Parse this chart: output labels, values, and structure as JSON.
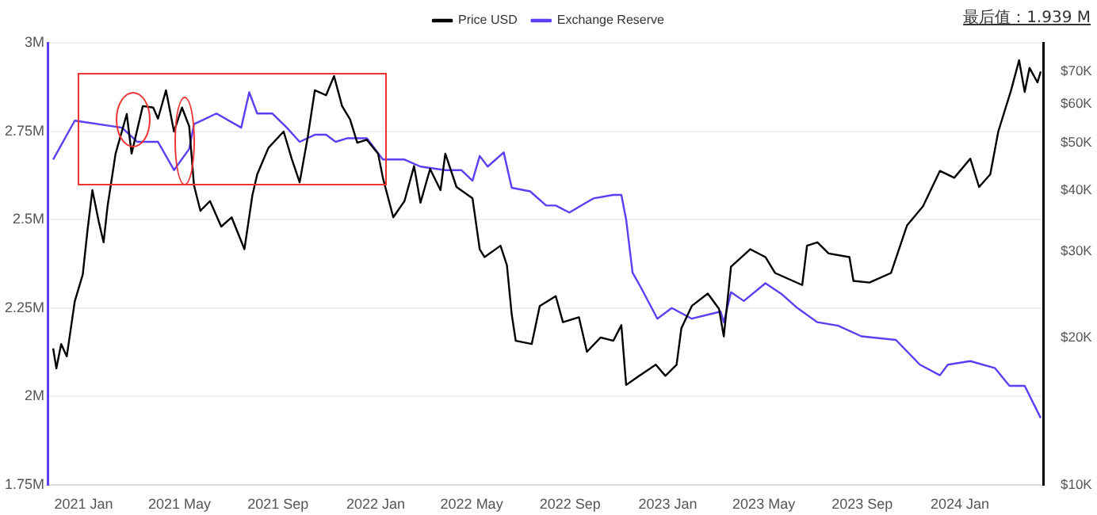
{
  "chart_data": {
    "type": "line",
    "annotations": [
      "最后值：1.939 M"
    ],
    "legend": "top",
    "grid": "y",
    "marker": "none",
    "line_style": "solid",
    "log": "y2",
    "ylim": [
      1.75,
      3
    ],
    "yticks": [
      {
        "value": 1.75,
        "label": "1.75M"
      },
      {
        "value": 2,
        "label": "2M"
      },
      {
        "value": 2.25,
        "label": "2.25M"
      },
      {
        "value": 2.5,
        "label": "2.5M"
      },
      {
        "value": 2.75,
        "label": "2.75M"
      },
      {
        "value": 3,
        "label": "3M"
      }
    ],
    "y2lim": [
      10000,
      80000
    ],
    "y2ticks": [
      {
        "value": 10000,
        "label": "$10K"
      },
      {
        "value": 20000,
        "label": "$20K"
      },
      {
        "value": 30000,
        "label": "$30K"
      },
      {
        "value": 40000,
        "label": "$40K"
      },
      {
        "value": 50000,
        "label": "$50K"
      },
      {
        "value": 60000,
        "label": "$60K"
      },
      {
        "value": 70000,
        "label": "$70K"
      }
    ],
    "xlim": [
      "2020-11-17",
      "2024-04-14"
    ],
    "xticks": [
      {
        "value": "2021-01-01",
        "label": "2021 Jan"
      },
      {
        "value": "2021-05-01",
        "label": "2021 May"
      },
      {
        "value": "2021-09-01",
        "label": "2021 Sep"
      },
      {
        "value": "2022-01-01",
        "label": "2022 Jan"
      },
      {
        "value": "2022-05-01",
        "label": "2022 May"
      },
      {
        "value": "2022-09-01",
        "label": "2022 Sep"
      },
      {
        "value": "2023-01-01",
        "label": "2023 Jan"
      },
      {
        "value": "2023-05-01",
        "label": "2023 May"
      },
      {
        "value": "2023-09-01",
        "label": "2023 Sep"
      },
      {
        "value": "2024-01-01",
        "label": "2024 Jan"
      }
    ],
    "series": [
      {
        "name": "Price USD",
        "color": "#000000",
        "axis": "y2",
        "x": [
          "2020-11-24",
          "2020-11-28",
          "2020-12-04",
          "2020-12-11",
          "2020-12-21",
          "2020-12-31",
          "2021-01-06",
          "2021-01-12",
          "2021-01-20",
          "2021-01-26",
          "2021-01-31",
          "2021-02-10",
          "2021-02-24",
          "2021-03-02",
          "2021-03-16",
          "2021-03-29",
          "2021-04-04",
          "2021-04-14",
          "2021-04-24",
          "2021-05-04",
          "2021-05-13",
          "2021-05-19",
          "2021-05-27",
          "2021-06-08",
          "2021-06-22",
          "2021-07-05",
          "2021-07-21",
          "2021-07-31",
          "2021-08-06",
          "2021-08-20",
          "2021-09-08",
          "2021-09-18",
          "2021-09-28",
          "2021-10-08",
          "2021-10-17",
          "2021-10-31",
          "2021-11-10",
          "2021-11-20",
          "2021-11-30",
          "2021-12-09",
          "2021-12-21",
          "2022-01-04",
          "2022-01-10",
          "2022-01-23",
          "2022-02-06",
          "2022-02-18",
          "2022-02-26",
          "2022-03-10",
          "2022-03-23",
          "2022-03-29",
          "2022-04-12",
          "2022-05-02",
          "2022-05-11",
          "2022-05-17",
          "2022-06-06",
          "2022-06-14",
          "2022-06-20",
          "2022-06-25",
          "2022-07-15",
          "2022-07-25",
          "2022-08-14",
          "2022-08-23",
          "2022-09-12",
          "2022-09-22",
          "2022-10-09",
          "2022-10-25",
          "2022-11-04",
          "2022-11-10",
          "2022-11-24",
          "2022-12-17",
          "2022-12-29",
          "2023-01-12",
          "2023-01-18",
          "2023-01-31",
          "2023-02-20",
          "2023-03-06",
          "2023-03-12",
          "2023-03-21",
          "2023-04-14",
          "2023-05-03",
          "2023-05-15",
          "2023-06-18",
          "2023-06-24",
          "2023-07-07",
          "2023-07-21",
          "2023-08-16",
          "2023-08-21",
          "2023-09-10",
          "2023-10-07",
          "2023-10-27",
          "2023-11-16",
          "2023-12-07",
          "2023-12-25",
          "2024-01-14",
          "2024-01-25",
          "2024-02-08",
          "2024-02-18",
          "2024-03-05",
          "2024-03-15",
          "2024-03-22",
          "2024-03-28",
          "2024-04-07",
          "2024-04-11"
        ],
        "values": [
          19000,
          17300,
          19400,
          18300,
          23700,
          26900,
          33200,
          40000,
          34500,
          31300,
          37100,
          47500,
          57200,
          47500,
          59400,
          59000,
          56000,
          64000,
          52700,
          59000,
          54000,
          40900,
          36300,
          38000,
          33700,
          35200,
          30300,
          39100,
          43100,
          48800,
          52700,
          46400,
          41500,
          51200,
          64000,
          62500,
          68400,
          59400,
          55800,
          50000,
          50700,
          47500,
          42400,
          35200,
          38000,
          44800,
          37700,
          44200,
          40000,
          47500,
          40600,
          38500,
          30300,
          29200,
          30800,
          28100,
          22300,
          19700,
          19400,
          23200,
          24300,
          21500,
          22000,
          18700,
          20000,
          19700,
          21200,
          16000,
          16600,
          17600,
          16700,
          17600,
          20900,
          23200,
          24600,
          22900,
          20100,
          27900,
          30300,
          29200,
          27100,
          25600,
          30800,
          31300,
          29700,
          29200,
          26100,
          25900,
          27100,
          33900,
          37100,
          43800,
          42400,
          46400,
          40600,
          43100,
          52700,
          64000,
          73700,
          63500,
          71100,
          66400,
          69900
        ]
      },
      {
        "name": "Exchange Reserve",
        "color": "#5b3ff5",
        "axis": "y",
        "x": [
          "2020-11-24",
          "2020-12-21",
          "2021-02-18",
          "2021-03-09",
          "2021-04-04",
          "2021-04-24",
          "2021-05-13",
          "2021-05-19",
          "2021-06-16",
          "2021-07-17",
          "2021-07-27",
          "2021-08-06",
          "2021-08-25",
          "2021-09-12",
          "2021-09-28",
          "2021-10-17",
          "2021-10-31",
          "2021-11-12",
          "2021-11-26",
          "2021-12-21",
          "2022-01-10",
          "2022-02-06",
          "2022-02-26",
          "2022-03-29",
          "2022-04-18",
          "2022-05-02",
          "2022-05-11",
          "2022-05-21",
          "2022-06-10",
          "2022-06-20",
          "2022-07-13",
          "2022-08-02",
          "2022-08-14",
          "2022-08-31",
          "2022-09-30",
          "2022-10-25",
          "2022-11-04",
          "2022-11-10",
          "2022-11-18",
          "2022-11-28",
          "2022-12-19",
          "2023-01-06",
          "2023-01-31",
          "2023-03-08",
          "2023-03-12",
          "2023-03-21",
          "2023-04-06",
          "2023-05-03",
          "2023-05-23",
          "2023-06-12",
          "2023-07-07",
          "2023-08-02",
          "2023-08-31",
          "2023-10-13",
          "2023-11-12",
          "2023-12-07",
          "2023-12-17",
          "2024-01-14",
          "2024-02-14",
          "2024-03-03",
          "2024-03-22",
          "2024-04-11"
        ],
        "values": [
          2.67,
          2.78,
          2.76,
          2.72,
          2.72,
          2.64,
          2.7,
          2.77,
          2.8,
          2.76,
          2.86,
          2.8,
          2.8,
          2.76,
          2.72,
          2.74,
          2.74,
          2.72,
          2.73,
          2.73,
          2.67,
          2.67,
          2.65,
          2.64,
          2.64,
          2.61,
          2.68,
          2.65,
          2.69,
          2.59,
          2.58,
          2.54,
          2.54,
          2.52,
          2.56,
          2.57,
          2.57,
          2.5,
          2.35,
          2.31,
          2.22,
          2.25,
          2.22,
          2.24,
          2.21,
          2.295,
          2.27,
          2.32,
          2.29,
          2.25,
          2.21,
          2.2,
          2.17,
          2.16,
          2.09,
          2.06,
          2.09,
          2.1,
          2.08,
          2.03,
          2.03,
          1.939
        ]
      }
    ]
  }
}
